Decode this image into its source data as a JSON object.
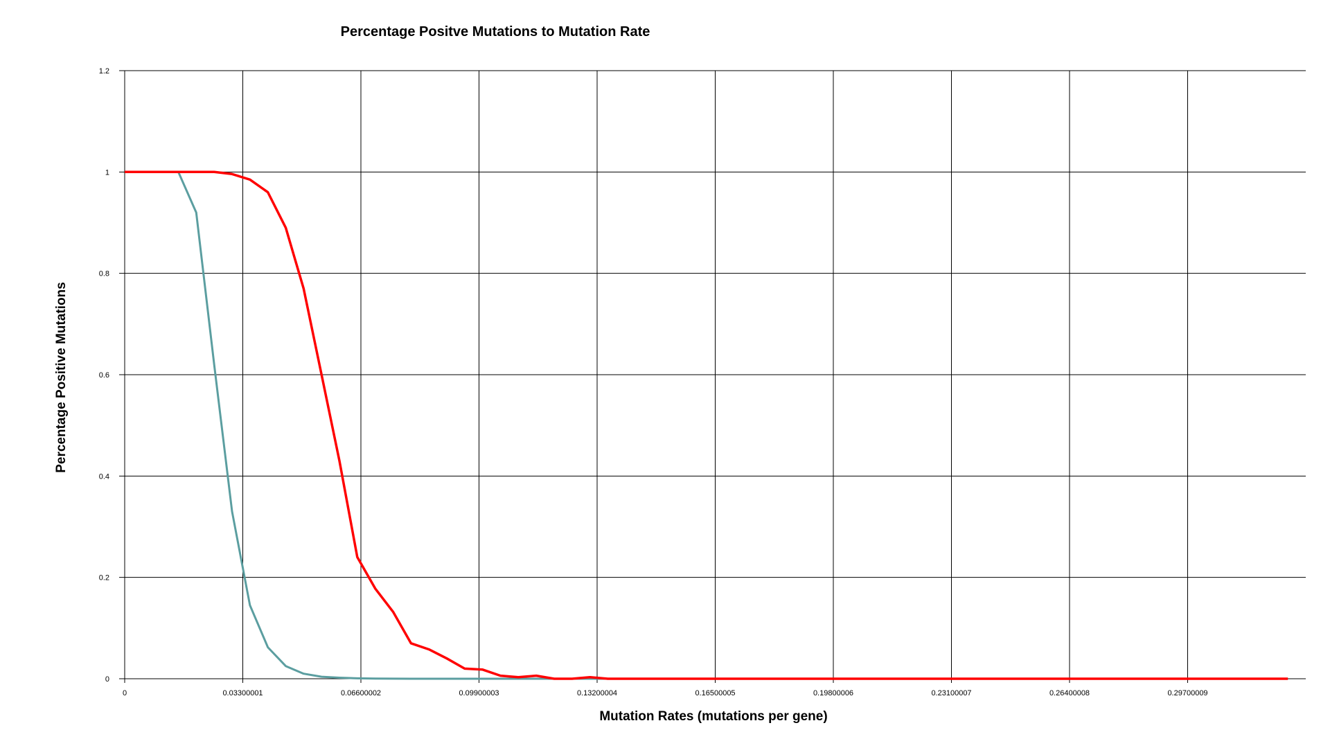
{
  "chart_data": {
    "type": "line",
    "title": "Percentage Positve Mutations to Mutation Rate",
    "xlabel": "Mutation Rates (mutations per gene)",
    "ylabel": "Percentage Positive Mutations",
    "xlim": [
      0,
      0.3300001
    ],
    "ylim": [
      0,
      1.2
    ],
    "grid": true,
    "x_tick_labels": [
      "0",
      "0.03300001",
      "0.06600002",
      "0.09900003",
      "0.13200004",
      "0.16500005",
      "0.19800006",
      "0.23100007",
      "0.26400008",
      "0.29700009"
    ],
    "x_tick_values": [
      0,
      0.03300001,
      0.06600002,
      0.09900003,
      0.13200004,
      0.16500005,
      0.19800006,
      0.23100007,
      0.26400008,
      0.29700009
    ],
    "y_tick_labels": [
      "0",
      "0.2",
      "0.4",
      "0.6",
      "0.8",
      "1",
      "1.2"
    ],
    "y_tick_values": [
      0,
      0.2,
      0.4,
      0.6,
      0.8,
      1,
      1.2
    ],
    "x_max": 0.3250001,
    "series": [
      {
        "color": "#5b9ea0",
        "points": [
          [
            0,
            1.0
          ],
          [
            0.005,
            1.0
          ],
          [
            0.01,
            1.0
          ],
          [
            0.015,
            1.0
          ],
          [
            0.02,
            0.92
          ],
          [
            0.025,
            0.62
          ],
          [
            0.03,
            0.33
          ],
          [
            0.035,
            0.145
          ],
          [
            0.04,
            0.062
          ],
          [
            0.045,
            0.025
          ],
          [
            0.05,
            0.01
          ],
          [
            0.055,
            0.004
          ],
          [
            0.06,
            0.002
          ],
          [
            0.065,
            0.0008
          ],
          [
            0.07,
            0.0003
          ],
          [
            0.08,
            0.0
          ],
          [
            0.1,
            0.0
          ],
          [
            0.15,
            0.0
          ],
          [
            0.2,
            0.0
          ],
          [
            0.25,
            0.0
          ],
          [
            0.3,
            0.0
          ],
          [
            0.3250001,
            0.0
          ]
        ]
      },
      {
        "color": "#ff0000",
        "points": [
          [
            0,
            1.0
          ],
          [
            0.005,
            1.0
          ],
          [
            0.01,
            1.0
          ],
          [
            0.015,
            1.0
          ],
          [
            0.02,
            1.0
          ],
          [
            0.025,
            1.0
          ],
          [
            0.03,
            0.996
          ],
          [
            0.035,
            0.985
          ],
          [
            0.04,
            0.96
          ],
          [
            0.045,
            0.89
          ],
          [
            0.05,
            0.77
          ],
          [
            0.055,
            0.6
          ],
          [
            0.06,
            0.43
          ],
          [
            0.065,
            0.24
          ],
          [
            0.07,
            0.178
          ],
          [
            0.075,
            0.132
          ],
          [
            0.08,
            0.07
          ],
          [
            0.085,
            0.058
          ],
          [
            0.09,
            0.04
          ],
          [
            0.095,
            0.02
          ],
          [
            0.1,
            0.018
          ],
          [
            0.105,
            0.006
          ],
          [
            0.11,
            0.003
          ],
          [
            0.115,
            0.006
          ],
          [
            0.12,
            0.0
          ],
          [
            0.125,
            0.0
          ],
          [
            0.13,
            0.003
          ],
          [
            0.135,
            0.0
          ],
          [
            0.15,
            0.0
          ],
          [
            0.2,
            0.0
          ],
          [
            0.25,
            0.0
          ],
          [
            0.3,
            0.0
          ],
          [
            0.3250001,
            0.0
          ]
        ]
      }
    ]
  }
}
